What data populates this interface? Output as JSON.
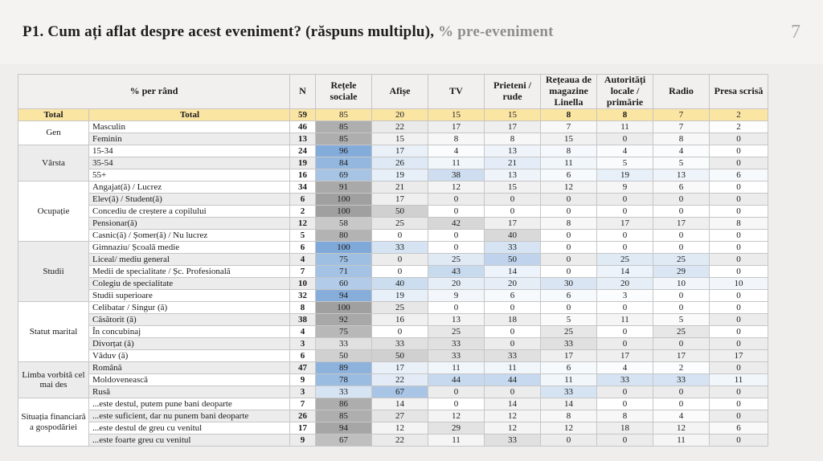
{
  "slide": {
    "title_main": "P1. Cum ați aflat despre acest eveniment? (răspuns multiplu), ",
    "title_sub": "% pre-eveniment",
    "page_number": "7"
  },
  "table": {
    "header": {
      "row_label": "% per rând",
      "columns": [
        "N",
        "Rețele sociale",
        "Afișe",
        "TV",
        "Prieteni / rude",
        "Rețeaua de magazine Linella",
        "Autorități locale / primărie",
        "Radio",
        "Presa scrisă"
      ]
    },
    "colors": {
      "total_row_bg": "#fbe5a3",
      "heat_gray_base": "#a0a0a0",
      "heat_blue_base": "#7fa9d8",
      "stripe": "#ececec"
    },
    "total_row": {
      "group": "Total",
      "label": "Total",
      "n": 59,
      "values": [
        85,
        20,
        15,
        15,
        8,
        8,
        7,
        2
      ],
      "bold_value_indices": [
        4,
        5
      ]
    },
    "groups": [
      {
        "name": "Gen",
        "scheme": "gray",
        "rows": [
          {
            "label": "Masculin",
            "n": 46,
            "values": [
              85,
              22,
              17,
              17,
              7,
              11,
              7,
              2
            ]
          },
          {
            "label": "Feminin",
            "n": 13,
            "values": [
              85,
              15,
              8,
              8,
              15,
              0,
              8,
              0
            ]
          }
        ]
      },
      {
        "name": "Vârsta",
        "scheme": "blue",
        "rows": [
          {
            "label": "15-34",
            "n": 24,
            "values": [
              96,
              17,
              4,
              13,
              8,
              4,
              4,
              0
            ]
          },
          {
            "label": "35-54",
            "n": 19,
            "values": [
              84,
              26,
              11,
              21,
              11,
              5,
              5,
              0
            ]
          },
          {
            "label": "55+",
            "n": 16,
            "values": [
              69,
              19,
              38,
              13,
              6,
              19,
              13,
              6
            ]
          }
        ]
      },
      {
        "name": "Ocupație",
        "scheme": "gray",
        "rows": [
          {
            "label": "Angajat(ă) / Lucrez",
            "n": 34,
            "values": [
              91,
              21,
              12,
              15,
              12,
              9,
              6,
              0
            ]
          },
          {
            "label": "Elev(ă) / Student(ă)",
            "n": 6,
            "values": [
              100,
              17,
              0,
              0,
              0,
              0,
              0,
              0
            ]
          },
          {
            "label": "Concediu de creștere a copilului",
            "n": 2,
            "values": [
              100,
              50,
              0,
              0,
              0,
              0,
              0,
              0
            ]
          },
          {
            "label": "Pensionar(ă)",
            "n": 12,
            "values": [
              58,
              25,
              42,
              17,
              8,
              17,
              17,
              8
            ]
          },
          {
            "label": "Casnic(ă) / Șomer(ă) / Nu lucrez",
            "n": 5,
            "values": [
              80,
              0,
              0,
              40,
              0,
              0,
              0,
              0
            ]
          }
        ]
      },
      {
        "name": "Studii",
        "scheme": "blue",
        "rows": [
          {
            "label": "Gimnaziu/ Școală medie",
            "n": 6,
            "values": [
              100,
              33,
              0,
              33,
              0,
              0,
              0,
              0
            ]
          },
          {
            "label": "Liceal/ mediu general",
            "n": 4,
            "values": [
              75,
              0,
              25,
              50,
              0,
              25,
              25,
              0
            ]
          },
          {
            "label": "Medii de specialitate / Șc. Profesională",
            "n": 7,
            "values": [
              71,
              0,
              43,
              14,
              0,
              14,
              29,
              0
            ]
          },
          {
            "label": "Colegiu de specialitate",
            "n": 10,
            "values": [
              60,
              40,
              20,
              20,
              30,
              20,
              10,
              10
            ]
          },
          {
            "label": "Studii superioare",
            "n": 32,
            "values": [
              94,
              19,
              9,
              6,
              6,
              3,
              0,
              0
            ]
          }
        ]
      },
      {
        "name": "Statut marital",
        "scheme": "gray",
        "rows": [
          {
            "label": "Celibatar / Singur (ă)",
            "n": 8,
            "values": [
              100,
              25,
              0,
              0,
              0,
              0,
              0,
              0
            ]
          },
          {
            "label": "Căsătorit (ă)",
            "n": 38,
            "values": [
              92,
              16,
              13,
              18,
              5,
              11,
              5,
              0
            ]
          },
          {
            "label": "În concubinaj",
            "n": 4,
            "values": [
              75,
              0,
              25,
              0,
              25,
              0,
              25,
              0
            ]
          },
          {
            "label": "Divorțat (ă)",
            "n": 3,
            "values": [
              33,
              33,
              33,
              0,
              33,
              0,
              0,
              0
            ]
          },
          {
            "label": "Văduv (ă)",
            "n": 6,
            "values": [
              50,
              50,
              33,
              33,
              17,
              17,
              17,
              17
            ]
          }
        ]
      },
      {
        "name": "Limba vorbită cel mai des",
        "scheme": "blue",
        "stripe_offset": 1,
        "rows": [
          {
            "label": "Română",
            "n": 47,
            "values": [
              89,
              17,
              11,
              11,
              6,
              4,
              2,
              0
            ]
          },
          {
            "label": "Moldovenească",
            "n": 9,
            "values": [
              78,
              22,
              44,
              44,
              11,
              33,
              33,
              11
            ]
          },
          {
            "label": "Rusă",
            "n": 3,
            "values": [
              33,
              67,
              0,
              0,
              33,
              0,
              0,
              0
            ]
          }
        ]
      },
      {
        "name": "Situația financiară a gospodăriei",
        "scheme": "gray",
        "rows": [
          {
            "label": "...este destul, putem pune bani deoparte",
            "n": 7,
            "values": [
              86,
              14,
              0,
              14,
              14,
              0,
              0,
              0
            ]
          },
          {
            "label": "...este suficient, dar nu punem bani deoparte",
            "n": 26,
            "values": [
              85,
              27,
              12,
              12,
              8,
              8,
              4,
              0
            ]
          },
          {
            "label": "...este destul de greu cu venitul",
            "n": 17,
            "values": [
              94,
              12,
              29,
              12,
              12,
              18,
              12,
              6
            ]
          },
          {
            "label": "...este foarte greu cu venitul",
            "n": 9,
            "values": [
              67,
              22,
              11,
              33,
              0,
              0,
              11,
              0
            ]
          }
        ]
      }
    ]
  }
}
